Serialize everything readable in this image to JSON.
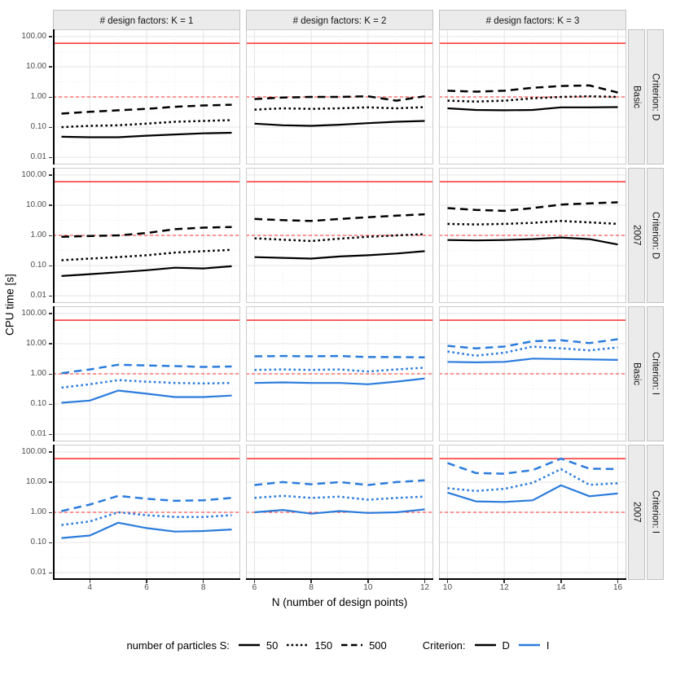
{
  "colors": {
    "black": "#000000",
    "blue": "#2b7cdc",
    "ref_red": "#ff2c2c",
    "grid_major": "#e4e4e4",
    "grid_minor": "#f2f2f2",
    "panel_border": "#cccccc",
    "strip_bg": "#ebebeb",
    "panel_bg": "#ffffff"
  },
  "y_axis": {
    "title": "CPU time [s]",
    "tick_labels": [
      "100.00",
      "10.00",
      "1.00",
      "0.10",
      "0.01"
    ],
    "tick_values": [
      100,
      10,
      1,
      0.1,
      0.01
    ]
  },
  "x_axis": {
    "title": "N (number of design points)"
  },
  "legend": {
    "group1_label": "number of particles S:",
    "group1_items": [
      {
        "label": "50",
        "linetype": "solid"
      },
      {
        "label": "150",
        "linetype": "dotted"
      },
      {
        "label": "500",
        "linetype": "dashed"
      }
    ],
    "group2_label": "Criterion:",
    "group2_items": [
      {
        "label": "D",
        "color": "#000000"
      },
      {
        "label": "I",
        "color": "#2b7cdc"
      }
    ]
  },
  "chart_data": {
    "type": "line",
    "xlabel": "N (number of design points)",
    "ylabel": "CPU time [s]",
    "y_scale": "log10",
    "ylim": [
      0.00575,
      173.8
    ],
    "y_ticks": [
      100,
      10,
      1,
      0.1,
      0.01
    ],
    "ref_lines": [
      {
        "value": 60,
        "style": "solid",
        "color": "#ff2c2c"
      },
      {
        "value": 1,
        "style": "dashed",
        "color": "#ff2c2c"
      }
    ],
    "facet_cols": [
      {
        "label": "# design factors: K = 1",
        "x_ticks": [
          4,
          6,
          8
        ],
        "x_domain": [
          2.7,
          9.3
        ]
      },
      {
        "label": "# design factors: K = 2",
        "x_ticks": [
          6,
          8,
          10,
          12
        ],
        "x_domain": [
          5.7,
          12.3
        ]
      },
      {
        "label": "# design factors: K = 3",
        "x_ticks": [
          10,
          12,
          14,
          16
        ],
        "x_domain": [
          9.7,
          16.3
        ]
      }
    ],
    "facet_rows": [
      {
        "strip_inner": "Basic",
        "strip_outer": "Criterion: D",
        "criterion": "D"
      },
      {
        "strip_inner": "2007",
        "strip_outer": "Criterion: D",
        "criterion": "D"
      },
      {
        "strip_inner": "Basic",
        "strip_outer": "Criterion: I",
        "criterion": "I"
      },
      {
        "strip_inner": "2007",
        "strip_outer": "Criterion: I",
        "criterion": "I"
      }
    ],
    "series_linetypes": {
      "50": "solid",
      "150": "dotted",
      "500": "dashed"
    },
    "panels": [
      {
        "row": 0,
        "col": 0,
        "x": [
          3,
          4,
          5,
          6,
          7,
          8,
          9
        ],
        "series": [
          {
            "name": "50",
            "values": [
              0.048,
              0.046,
              0.046,
              0.052,
              0.057,
              0.062,
              0.065
            ]
          },
          {
            "name": "150",
            "values": [
              0.1,
              0.11,
              0.115,
              0.13,
              0.15,
              0.16,
              0.17
            ]
          },
          {
            "name": "500",
            "values": [
              0.28,
              0.32,
              0.36,
              0.4,
              0.47,
              0.52,
              0.55
            ]
          }
        ]
      },
      {
        "row": 0,
        "col": 1,
        "x": [
          6,
          7,
          8,
          9,
          10,
          11,
          12
        ],
        "series": [
          {
            "name": "50",
            "values": [
              0.13,
              0.115,
              0.11,
              0.12,
              0.135,
              0.15,
              0.16
            ]
          },
          {
            "name": "150",
            "values": [
              0.38,
              0.42,
              0.4,
              0.42,
              0.45,
              0.42,
              0.46
            ]
          },
          {
            "name": "500",
            "values": [
              0.85,
              0.95,
              1.0,
              1.0,
              1.05,
              0.75,
              1.05
            ]
          }
        ]
      },
      {
        "row": 0,
        "col": 2,
        "x": [
          10,
          11,
          12,
          13,
          14,
          15,
          16
        ],
        "series": [
          {
            "name": "50",
            "values": [
              0.42,
              0.37,
              0.36,
              0.37,
              0.45,
              0.45,
              0.46
            ]
          },
          {
            "name": "150",
            "values": [
              0.75,
              0.7,
              0.75,
              0.9,
              1.0,
              1.05,
              1.0
            ]
          },
          {
            "name": "500",
            "values": [
              1.6,
              1.5,
              1.6,
              2.0,
              2.3,
              2.4,
              1.4
            ]
          }
        ]
      },
      {
        "row": 1,
        "col": 0,
        "x": [
          3,
          4,
          5,
          6,
          7,
          8,
          9
        ],
        "series": [
          {
            "name": "50",
            "values": [
              0.045,
              0.052,
              0.06,
              0.07,
              0.085,
              0.08,
              0.095
            ]
          },
          {
            "name": "150",
            "values": [
              0.15,
              0.17,
              0.19,
              0.22,
              0.27,
              0.3,
              0.33
            ]
          },
          {
            "name": "500",
            "values": [
              0.9,
              0.95,
              1.0,
              1.2,
              1.6,
              1.8,
              1.9
            ]
          }
        ]
      },
      {
        "row": 1,
        "col": 1,
        "x": [
          6,
          7,
          8,
          9,
          10,
          11,
          12
        ],
        "series": [
          {
            "name": "50",
            "values": [
              0.19,
              0.18,
              0.17,
              0.2,
              0.22,
              0.25,
              0.3
            ]
          },
          {
            "name": "150",
            "values": [
              0.8,
              0.72,
              0.65,
              0.78,
              0.9,
              1.0,
              1.1
            ]
          },
          {
            "name": "500",
            "values": [
              3.5,
              3.2,
              3.0,
              3.5,
              4.0,
              4.5,
              5.0
            ]
          }
        ]
      },
      {
        "row": 1,
        "col": 2,
        "x": [
          10,
          11,
          12,
          13,
          14,
          15,
          16
        ],
        "series": [
          {
            "name": "50",
            "values": [
              0.7,
              0.68,
              0.7,
              0.75,
              0.85,
              0.75,
              0.5
            ]
          },
          {
            "name": "150",
            "values": [
              2.4,
              2.3,
              2.4,
              2.6,
              3.0,
              2.7,
              2.4
            ]
          },
          {
            "name": "500",
            "values": [
              8.0,
              7.0,
              6.5,
              8.0,
              10.5,
              11.5,
              12.5
            ]
          }
        ]
      },
      {
        "row": 2,
        "col": 0,
        "x": [
          3,
          4,
          5,
          6,
          7,
          8,
          9
        ],
        "series": [
          {
            "name": "50",
            "values": [
              0.11,
              0.13,
              0.28,
              0.22,
              0.17,
              0.17,
              0.19
            ]
          },
          {
            "name": "150",
            "values": [
              0.35,
              0.45,
              0.62,
              0.55,
              0.5,
              0.48,
              0.5
            ]
          },
          {
            "name": "500",
            "values": [
              1.05,
              1.4,
              2.0,
              1.9,
              1.8,
              1.7,
              1.75
            ]
          }
        ]
      },
      {
        "row": 2,
        "col": 1,
        "x": [
          6,
          7,
          8,
          9,
          10,
          11,
          12
        ],
        "series": [
          {
            "name": "50",
            "values": [
              0.5,
              0.52,
              0.5,
              0.5,
              0.45,
              0.55,
              0.7
            ]
          },
          {
            "name": "150",
            "values": [
              1.35,
              1.4,
              1.35,
              1.4,
              1.2,
              1.4,
              1.6
            ]
          },
          {
            "name": "500",
            "values": [
              3.8,
              3.9,
              3.8,
              3.9,
              3.6,
              3.6,
              3.5
            ]
          }
        ]
      },
      {
        "row": 2,
        "col": 2,
        "x": [
          10,
          11,
          12,
          13,
          14,
          15,
          16
        ],
        "series": [
          {
            "name": "50",
            "values": [
              2.5,
              2.4,
              2.5,
              3.2,
              3.1,
              3.0,
              2.9
            ]
          },
          {
            "name": "150",
            "values": [
              5.5,
              4.0,
              5.0,
              8.0,
              7.0,
              6.0,
              7.5
            ]
          },
          {
            "name": "500",
            "values": [
              8.5,
              7.0,
              8.0,
              12.0,
              13.0,
              10.5,
              14.0
            ]
          }
        ]
      },
      {
        "row": 3,
        "col": 0,
        "x": [
          3,
          4,
          5,
          6,
          7,
          8,
          9
        ],
        "series": [
          {
            "name": "50",
            "values": [
              0.14,
              0.17,
              0.45,
              0.3,
              0.23,
              0.24,
              0.27
            ]
          },
          {
            "name": "150",
            "values": [
              0.38,
              0.5,
              1.0,
              0.8,
              0.7,
              0.7,
              0.8
            ]
          },
          {
            "name": "500",
            "values": [
              1.1,
              1.8,
              3.5,
              2.8,
              2.4,
              2.5,
              3.0
            ]
          }
        ]
      },
      {
        "row": 3,
        "col": 1,
        "x": [
          6,
          7,
          8,
          9,
          10,
          11,
          12
        ],
        "series": [
          {
            "name": "50",
            "values": [
              1.0,
              1.2,
              0.9,
              1.1,
              0.95,
              1.0,
              1.25
            ]
          },
          {
            "name": "150",
            "values": [
              3.0,
              3.5,
              3.0,
              3.3,
              2.6,
              3.0,
              3.3
            ]
          },
          {
            "name": "500",
            "values": [
              8.0,
              10.0,
              8.5,
              10.0,
              8.0,
              10.0,
              11.5
            ]
          }
        ]
      },
      {
        "row": 3,
        "col": 2,
        "x": [
          10,
          11,
          12,
          13,
          14,
          15,
          16
        ],
        "series": [
          {
            "name": "50",
            "values": [
              4.5,
              2.3,
              2.2,
              2.5,
              7.8,
              3.4,
              4.2
            ]
          },
          {
            "name": "150",
            "values": [
              6.3,
              5.1,
              6.0,
              9.5,
              27,
              8.1,
              9.2
            ]
          },
          {
            "name": "500",
            "values": [
              43,
              20,
              19,
              25,
              60,
              28,
              27
            ]
          }
        ]
      }
    ]
  }
}
